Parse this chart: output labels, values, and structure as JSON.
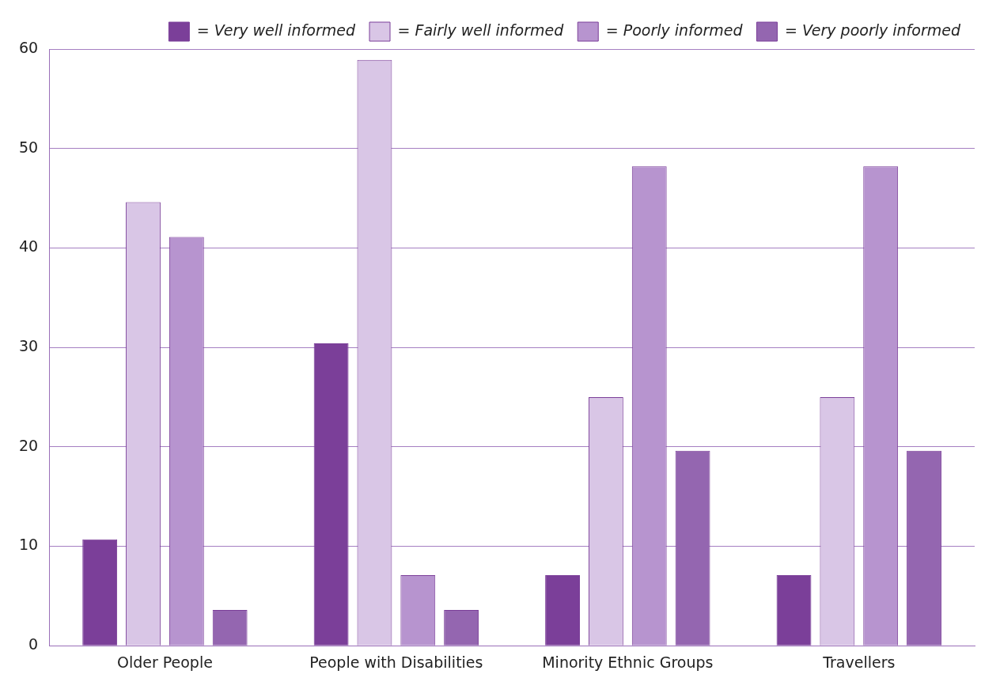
{
  "chart_data": {
    "type": "bar",
    "categories": [
      "Older People",
      "People with Disabilities",
      "Minority Ethnic Groups",
      "Travellers"
    ],
    "series": [
      {
        "name": "= Very well informed",
        "color": "#7b3f99",
        "values": [
          10.7,
          30.4,
          7.1,
          7.1
        ]
      },
      {
        "name": "= Fairly well informed",
        "color": "#d9c6e6",
        "values": [
          44.6,
          58.9,
          25,
          25
        ]
      },
      {
        "name": "= Poorly informed",
        "color": "#b794cf",
        "values": [
          41.1,
          7.1,
          48.2,
          48.2
        ]
      },
      {
        "name": "= Very poorly informed",
        "color": "#9466b0",
        "values": [
          3.6,
          3.6,
          19.6,
          19.6
        ]
      }
    ],
    "ylim": [
      0,
      60
    ],
    "yticks": [
      0,
      10,
      20,
      30,
      40,
      50,
      60
    ],
    "grid": "y",
    "legend": "top right"
  }
}
